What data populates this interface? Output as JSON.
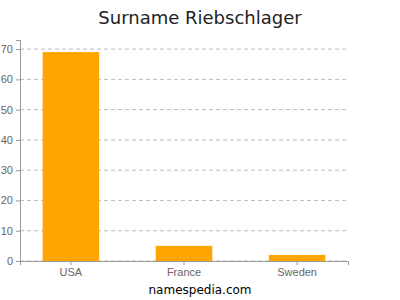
{
  "chart_data": {
    "type": "bar",
    "title": "Surname Riebschlager",
    "categories": [
      "USA",
      "France",
      "Sweden"
    ],
    "values": [
      69,
      5,
      2
    ],
    "color": "#ffa500",
    "ylim": [
      0,
      73
    ],
    "yticks": [
      0,
      10,
      20,
      30,
      40,
      50,
      60,
      70
    ],
    "grid": true,
    "source": "namespedia.com"
  }
}
